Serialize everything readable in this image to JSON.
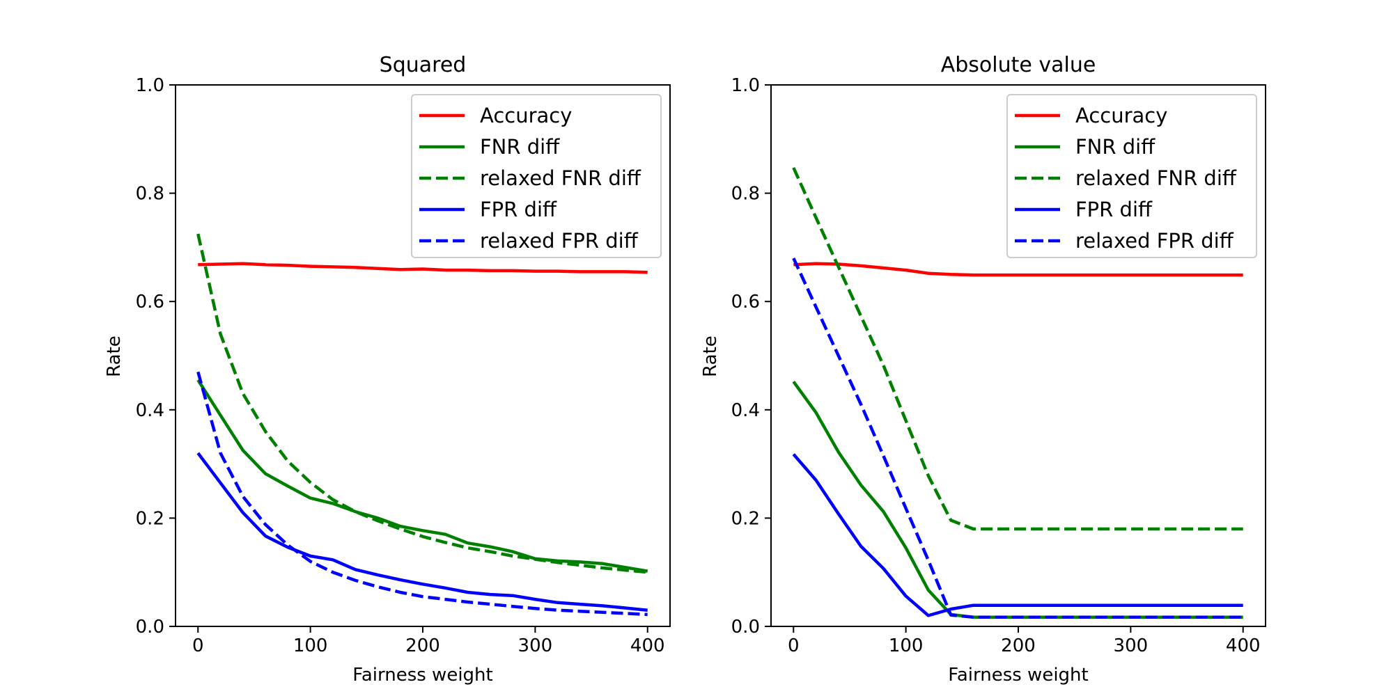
{
  "chart_data": [
    {
      "type": "line",
      "title": "Squared",
      "xlabel": "Fairness weight",
      "ylabel": "Rate",
      "xlim": [
        -20,
        420
      ],
      "ylim": [
        0.0,
        1.0
      ],
      "xticks": [
        "0",
        "100",
        "200",
        "300",
        "400"
      ],
      "yticks": [
        "0.0",
        "0.2",
        "0.4",
        "0.6",
        "0.8",
        "1.0"
      ],
      "grid": false,
      "legend_position": "top-right",
      "x": [
        0,
        20,
        40,
        60,
        80,
        100,
        120,
        140,
        160,
        180,
        200,
        220,
        240,
        260,
        280,
        300,
        320,
        340,
        360,
        380,
        400
      ],
      "series": [
        {
          "name": "Accuracy",
          "color": "#ff0000",
          "dash": "solid",
          "values": [
            0.668,
            0.669,
            0.67,
            0.668,
            0.667,
            0.665,
            0.664,
            0.663,
            0.661,
            0.659,
            0.66,
            0.658,
            0.658,
            0.657,
            0.657,
            0.656,
            0.656,
            0.655,
            0.655,
            0.655,
            0.654
          ]
        },
        {
          "name": "FNR diff",
          "color": "#008000",
          "dash": "solid",
          "values": [
            0.455,
            0.39,
            0.325,
            0.282,
            0.259,
            0.237,
            0.227,
            0.212,
            0.2,
            0.185,
            0.177,
            0.17,
            0.154,
            0.147,
            0.138,
            0.125,
            0.121,
            0.119,
            0.116,
            0.109,
            0.102
          ]
        },
        {
          "name": "relaxed FNR diff",
          "color": "#008000",
          "dash": "dashed",
          "values": [
            0.725,
            0.54,
            0.43,
            0.36,
            0.305,
            0.266,
            0.234,
            0.212,
            0.195,
            0.18,
            0.166,
            0.155,
            0.145,
            0.138,
            0.13,
            0.124,
            0.118,
            0.113,
            0.108,
            0.104,
            0.1
          ]
        },
        {
          "name": "FPR diff",
          "color": "#0000ff",
          "dash": "solid",
          "values": [
            0.32,
            0.265,
            0.21,
            0.167,
            0.146,
            0.13,
            0.123,
            0.105,
            0.095,
            0.086,
            0.078,
            0.071,
            0.063,
            0.059,
            0.057,
            0.05,
            0.044,
            0.041,
            0.038,
            0.034,
            0.03
          ]
        },
        {
          "name": "relaxed FPR diff",
          "color": "#0000ff",
          "dash": "dashed",
          "values": [
            0.47,
            0.32,
            0.24,
            0.188,
            0.15,
            0.12,
            0.1,
            0.085,
            0.073,
            0.063,
            0.055,
            0.05,
            0.045,
            0.041,
            0.037,
            0.033,
            0.03,
            0.028,
            0.026,
            0.024,
            0.022
          ]
        }
      ]
    },
    {
      "type": "line",
      "title": "Absolute value",
      "xlabel": "Fairness weight",
      "ylabel": "Rate",
      "xlim": [
        -20,
        420
      ],
      "ylim": [
        0.0,
        1.0
      ],
      "xticks": [
        "0",
        "100",
        "200",
        "300",
        "400"
      ],
      "yticks": [
        "0.0",
        "0.2",
        "0.4",
        "0.6",
        "0.8",
        "1.0"
      ],
      "grid": false,
      "legend_position": "top-right",
      "x": [
        0,
        20,
        40,
        60,
        80,
        100,
        120,
        140,
        160,
        180,
        200,
        220,
        240,
        260,
        280,
        300,
        320,
        340,
        360,
        380,
        400
      ],
      "series": [
        {
          "name": "Accuracy",
          "color": "#ff0000",
          "dash": "solid",
          "values": [
            0.668,
            0.67,
            0.669,
            0.666,
            0.662,
            0.658,
            0.652,
            0.65,
            0.649,
            0.649,
            0.649,
            0.649,
            0.649,
            0.649,
            0.649,
            0.649,
            0.649,
            0.649,
            0.649,
            0.649,
            0.649
          ]
        },
        {
          "name": "FNR diff",
          "color": "#008000",
          "dash": "solid",
          "values": [
            0.452,
            0.395,
            0.322,
            0.261,
            0.212,
            0.145,
            0.067,
            0.022,
            0.017,
            0.017,
            0.017,
            0.017,
            0.017,
            0.017,
            0.017,
            0.017,
            0.017,
            0.017,
            0.017,
            0.017,
            0.017
          ]
        },
        {
          "name": "relaxed FNR diff",
          "color": "#008000",
          "dash": "dashed",
          "values": [
            0.847,
            0.755,
            0.664,
            0.573,
            0.482,
            0.38,
            0.278,
            0.196,
            0.18,
            0.18,
            0.18,
            0.18,
            0.18,
            0.18,
            0.18,
            0.18,
            0.18,
            0.18,
            0.18,
            0.18,
            0.18
          ]
        },
        {
          "name": "FPR diff",
          "color": "#0000ff",
          "dash": "solid",
          "values": [
            0.318,
            0.27,
            0.208,
            0.148,
            0.107,
            0.056,
            0.02,
            0.032,
            0.039,
            0.039,
            0.039,
            0.039,
            0.039,
            0.039,
            0.039,
            0.039,
            0.039,
            0.039,
            0.039,
            0.039,
            0.039
          ]
        },
        {
          "name": "relaxed FPR diff",
          "color": "#0000ff",
          "dash": "dashed",
          "values": [
            0.68,
            0.59,
            0.5,
            0.41,
            0.315,
            0.218,
            0.122,
            0.021,
            0.017,
            0.017,
            0.017,
            0.017,
            0.017,
            0.017,
            0.017,
            0.017,
            0.017,
            0.017,
            0.017,
            0.017,
            0.017
          ]
        }
      ]
    }
  ]
}
